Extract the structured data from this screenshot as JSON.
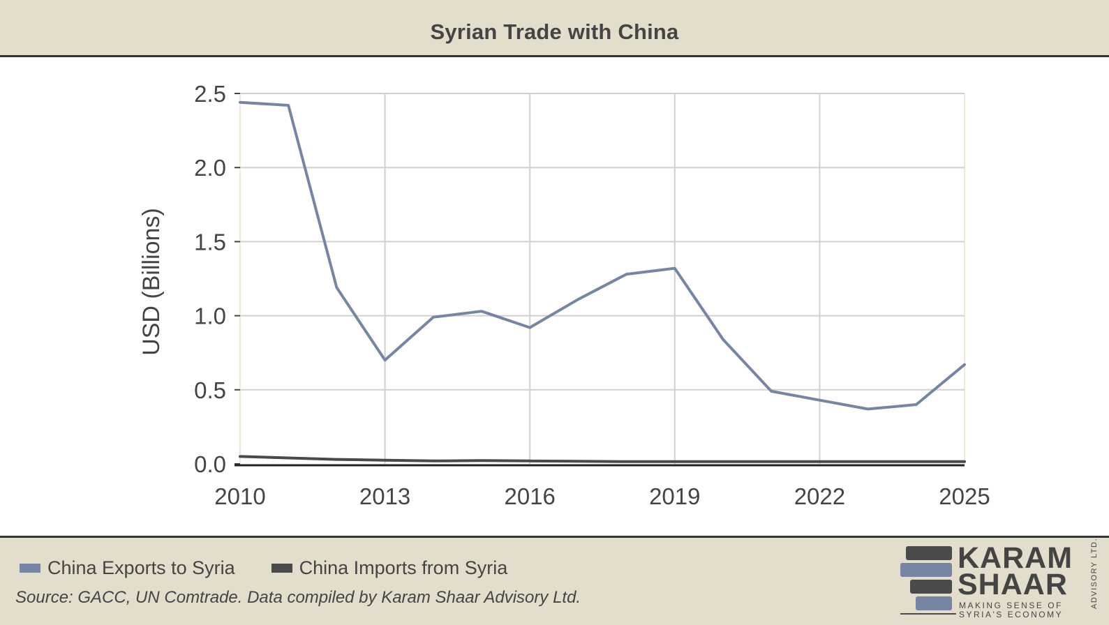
{
  "header": {
    "title": "Syrian Trade with China"
  },
  "chart_data": {
    "type": "line",
    "title": "Syrian Trade with China",
    "xlabel": "",
    "ylabel": "USD (Billions)",
    "xlim": [
      2010,
      2025
    ],
    "ylim": [
      0,
      2.5
    ],
    "x_ticks": [
      2010,
      2013,
      2016,
      2019,
      2022,
      2025
    ],
    "y_ticks": [
      0,
      0.5,
      1.0,
      1.5,
      2.0,
      2.5
    ],
    "y_tick_labels": [
      "0.0",
      "0.5",
      "1.0",
      "1.5",
      "2.0",
      "2.5"
    ],
    "grid": true,
    "legend_placement": "bottom-left",
    "x": [
      2010,
      2011,
      2012,
      2013,
      2014,
      2015,
      2016,
      2017,
      2018,
      2019,
      2020,
      2021,
      2022,
      2023,
      2024,
      2025
    ],
    "series": [
      {
        "name": "China Exports to Syria",
        "color": "#7585a3",
        "values": [
          2.44,
          2.42,
          1.19,
          0.7,
          0.99,
          1.03,
          0.92,
          1.11,
          1.28,
          1.32,
          0.84,
          0.49,
          0.43,
          0.37,
          0.4,
          0.67
        ]
      },
      {
        "name": "China Imports from Syria",
        "color": "#4a4a4a",
        "values": [
          0.05,
          0.04,
          0.03,
          0.025,
          0.02,
          0.022,
          0.02,
          0.018,
          0.015,
          0.015,
          0.015,
          0.015,
          0.015,
          0.015,
          0.015,
          0.015
        ]
      }
    ]
  },
  "footer": {
    "source": "Source: GACC, UN Comtrade. Data compiled by Karam Shaar Advisory Ltd."
  },
  "logo": {
    "line1": "KARAM",
    "line2": "SHAAR",
    "tagline1": "MAKING SENSE OF",
    "tagline2": "SYRIA'S ECONOMY",
    "side": "ADVISORY LTD.",
    "colors": {
      "dark": "#4a4a4a",
      "blue": "#7585a3"
    }
  }
}
